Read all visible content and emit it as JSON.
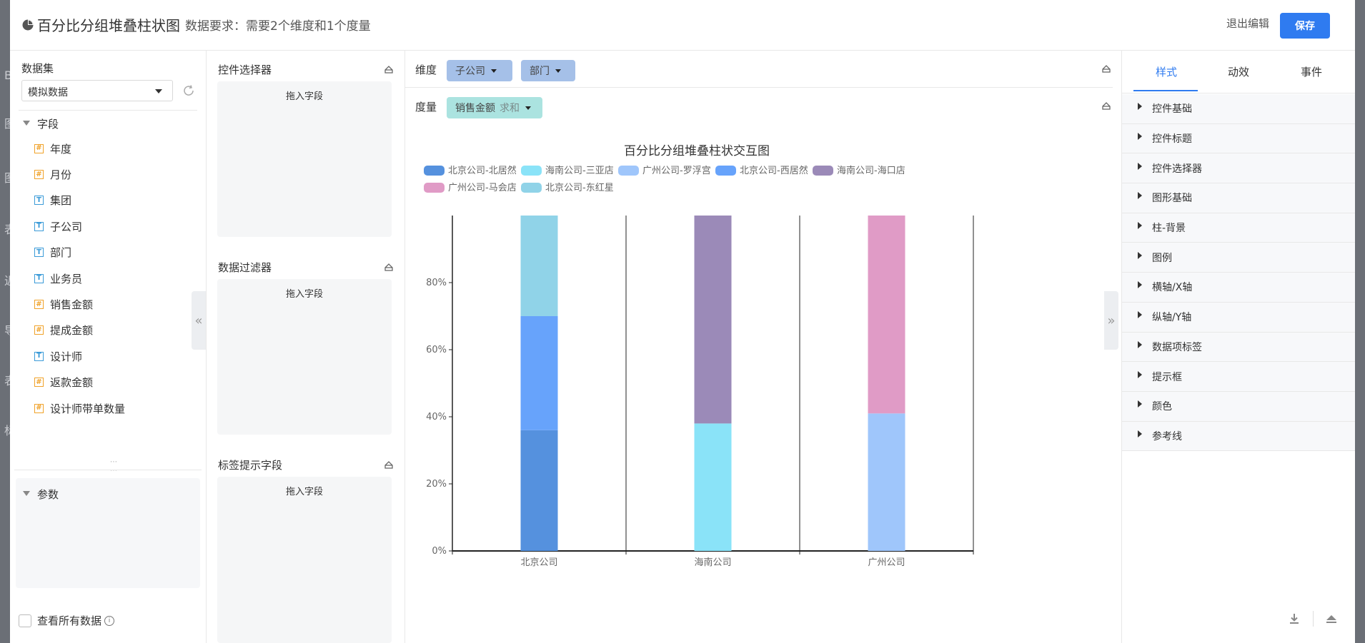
{
  "header": {
    "title": "百分比分组堆叠柱状图",
    "requirement": "数据要求：需要2个维度和1个度量",
    "exit_label": "退出编辑",
    "save_label": "保存"
  },
  "backdrop": {
    "letters": [
      "B",
      "图",
      "图",
      "表",
      "近",
      "导",
      "表",
      "标"
    ]
  },
  "left_panel": {
    "dataset_label": "数据集",
    "dataset_value": "模拟数据",
    "fields_header": "字段",
    "fields": [
      {
        "label": "年度",
        "type": "number"
      },
      {
        "label": "月份",
        "type": "number"
      },
      {
        "label": "集团",
        "type": "text"
      },
      {
        "label": "子公司",
        "type": "text"
      },
      {
        "label": "部门",
        "type": "text"
      },
      {
        "label": "业务员",
        "type": "text"
      },
      {
        "label": "销售金额",
        "type": "number"
      },
      {
        "label": "提成金额",
        "type": "number"
      },
      {
        "label": "设计师",
        "type": "text"
      },
      {
        "label": "返款金额",
        "type": "number"
      },
      {
        "label": "设计师带单数量",
        "type": "number"
      }
    ],
    "params_header": "参数",
    "view_all_label": "查看所有数据"
  },
  "middle_panel": {
    "sections": [
      {
        "title": "控件选择器",
        "hint": "拖入字段"
      },
      {
        "title": "数据过滤器",
        "hint": "拖入字段"
      },
      {
        "title": "标签提示字段",
        "hint": "拖入字段"
      }
    ]
  },
  "config": {
    "dimension_label": "维度",
    "dimensions": [
      "子公司",
      "部门"
    ],
    "measure_label": "度量",
    "measure": {
      "name": "销售金额",
      "agg": "求和"
    }
  },
  "chart_data": {
    "type": "bar",
    "stacked": true,
    "percent": true,
    "title": "百分比分组堆叠柱状交互图",
    "categories": [
      "北京公司",
      "海南公司",
      "广州公司"
    ],
    "y_ticks": [
      "0%",
      "20%",
      "40%",
      "60%",
      "80%"
    ],
    "ylim": [
      0,
      100
    ],
    "series": [
      {
        "name": "北京公司-北居然",
        "color": "#5591de",
        "values": [
          36,
          0,
          0
        ]
      },
      {
        "name": "海南公司-三亚店",
        "color": "#8ae3f8",
        "values": [
          0,
          38,
          0
        ]
      },
      {
        "name": "广州公司-罗浮宫",
        "color": "#9fc6fb",
        "values": [
          0,
          0,
          41
        ]
      },
      {
        "name": "北京公司-西居然",
        "color": "#67a3fb",
        "values": [
          34,
          0,
          0
        ]
      },
      {
        "name": "海南公司-海口店",
        "color": "#9b8ab8",
        "values": [
          0,
          62,
          0
        ]
      },
      {
        "name": "广州公司-马会店",
        "color": "#e09bc6",
        "values": [
          0,
          0,
          59
        ]
      },
      {
        "name": "北京公司-东红星",
        "color": "#90d3e8",
        "values": [
          30,
          0,
          0
        ]
      }
    ]
  },
  "right_panel": {
    "tabs": [
      "样式",
      "动效",
      "事件"
    ],
    "active_tab": "样式",
    "sections": [
      "控件基础",
      "控件标题",
      "控件选择器",
      "图形基础",
      "柱-背景",
      "图例",
      "横轴/X轴",
      "纵轴/Y轴",
      "数据项标签",
      "提示框",
      "颜色",
      "参考线"
    ]
  }
}
